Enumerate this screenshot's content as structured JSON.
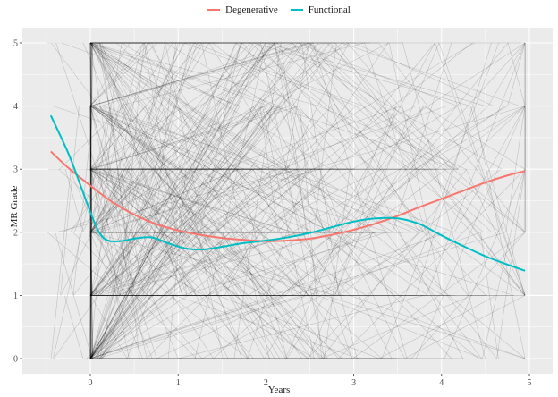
{
  "chart_data": {
    "type": "line",
    "title": "",
    "xlabel": "Years",
    "ylabel": "MR Grade",
    "xlim": [
      -0.75,
      5.25
    ],
    "ylim": [
      -0.25,
      5.25
    ],
    "x_ticks": [
      0,
      1,
      2,
      3,
      4,
      5
    ],
    "y_ticks": [
      0,
      1,
      2,
      3,
      4,
      5
    ],
    "grid": true,
    "legend_position": "top",
    "legend": [
      "Degenerative",
      "Functional"
    ],
    "colors": {
      "Degenerative": "#f8766d",
      "Functional": "#00bfc4",
      "spaghetti": "#000000",
      "panel": "#ebebeb",
      "grid": "#ffffff"
    },
    "background_layer": "individual patient trajectories (spaghetti lines, low-alpha black)",
    "series": [
      {
        "name": "Degenerative",
        "x": [
          -0.45,
          -0.25,
          0,
          0.25,
          0.5,
          0.75,
          1.0,
          1.25,
          1.5,
          1.75,
          2.0,
          2.25,
          2.5,
          2.75,
          3.0,
          3.25,
          3.5,
          3.75,
          4.0,
          4.25,
          4.5,
          4.75,
          4.95
        ],
        "y": [
          3.28,
          3.02,
          2.74,
          2.48,
          2.28,
          2.13,
          2.03,
          1.96,
          1.91,
          1.88,
          1.86,
          1.87,
          1.9,
          1.96,
          2.04,
          2.14,
          2.26,
          2.4,
          2.53,
          2.66,
          2.79,
          2.9,
          2.97
        ]
      },
      {
        "name": "Functional",
        "x": [
          -0.45,
          -0.25,
          -0.1,
          0,
          0.1,
          0.2,
          0.35,
          0.5,
          0.7,
          0.9,
          1.1,
          1.3,
          1.5,
          1.75,
          2.0,
          2.25,
          2.5,
          2.75,
          3.0,
          3.25,
          3.5,
          3.75,
          4.0,
          4.25,
          4.5,
          4.75,
          4.95
        ],
        "y": [
          3.85,
          3.25,
          2.7,
          2.32,
          2.0,
          1.87,
          1.86,
          1.9,
          1.92,
          1.82,
          1.74,
          1.73,
          1.77,
          1.83,
          1.87,
          1.92,
          1.99,
          2.08,
          2.17,
          2.22,
          2.22,
          2.13,
          1.95,
          1.78,
          1.62,
          1.49,
          1.39
        ]
      }
    ]
  }
}
